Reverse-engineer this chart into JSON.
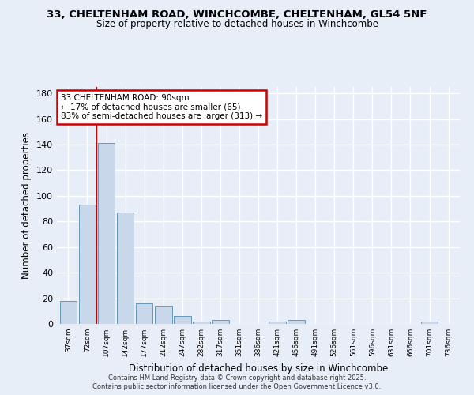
{
  "title": "33, CHELTENHAM ROAD, WINCHCOMBE, CHELTENHAM, GL54 5NF",
  "subtitle": "Size of property relative to detached houses in Winchcombe",
  "xlabel": "Distribution of detached houses by size in Winchcombe",
  "ylabel": "Number of detached properties",
  "categories": [
    "37sqm",
    "72sqm",
    "107sqm",
    "142sqm",
    "177sqm",
    "212sqm",
    "247sqm",
    "282sqm",
    "317sqm",
    "351sqm",
    "386sqm",
    "421sqm",
    "456sqm",
    "491sqm",
    "526sqm",
    "561sqm",
    "596sqm",
    "631sqm",
    "666sqm",
    "701sqm",
    "736sqm"
  ],
  "values": [
    18,
    93,
    141,
    87,
    16,
    14,
    6,
    2,
    3,
    0,
    0,
    2,
    3,
    0,
    0,
    0,
    0,
    0,
    0,
    2,
    0
  ],
  "bar_color": "#c8d8ea",
  "bar_edge_color": "#6699bb",
  "background_color": "#e8eef8",
  "grid_color": "#ffffff",
  "red_line_x": 1.48,
  "annotation_text": "33 CHELTENHAM ROAD: 90sqm\n← 17% of detached houses are smaller (65)\n83% of semi-detached houses are larger (313) →",
  "annotation_box_color": "#ffffff",
  "annotation_box_edge": "#cc0000",
  "ylim": [
    0,
    185
  ],
  "yticks": [
    0,
    20,
    40,
    60,
    80,
    100,
    120,
    140,
    160,
    180
  ],
  "footer_line1": "Contains HM Land Registry data © Crown copyright and database right 2025.",
  "footer_line2": "Contains public sector information licensed under the Open Government Licence v3.0."
}
